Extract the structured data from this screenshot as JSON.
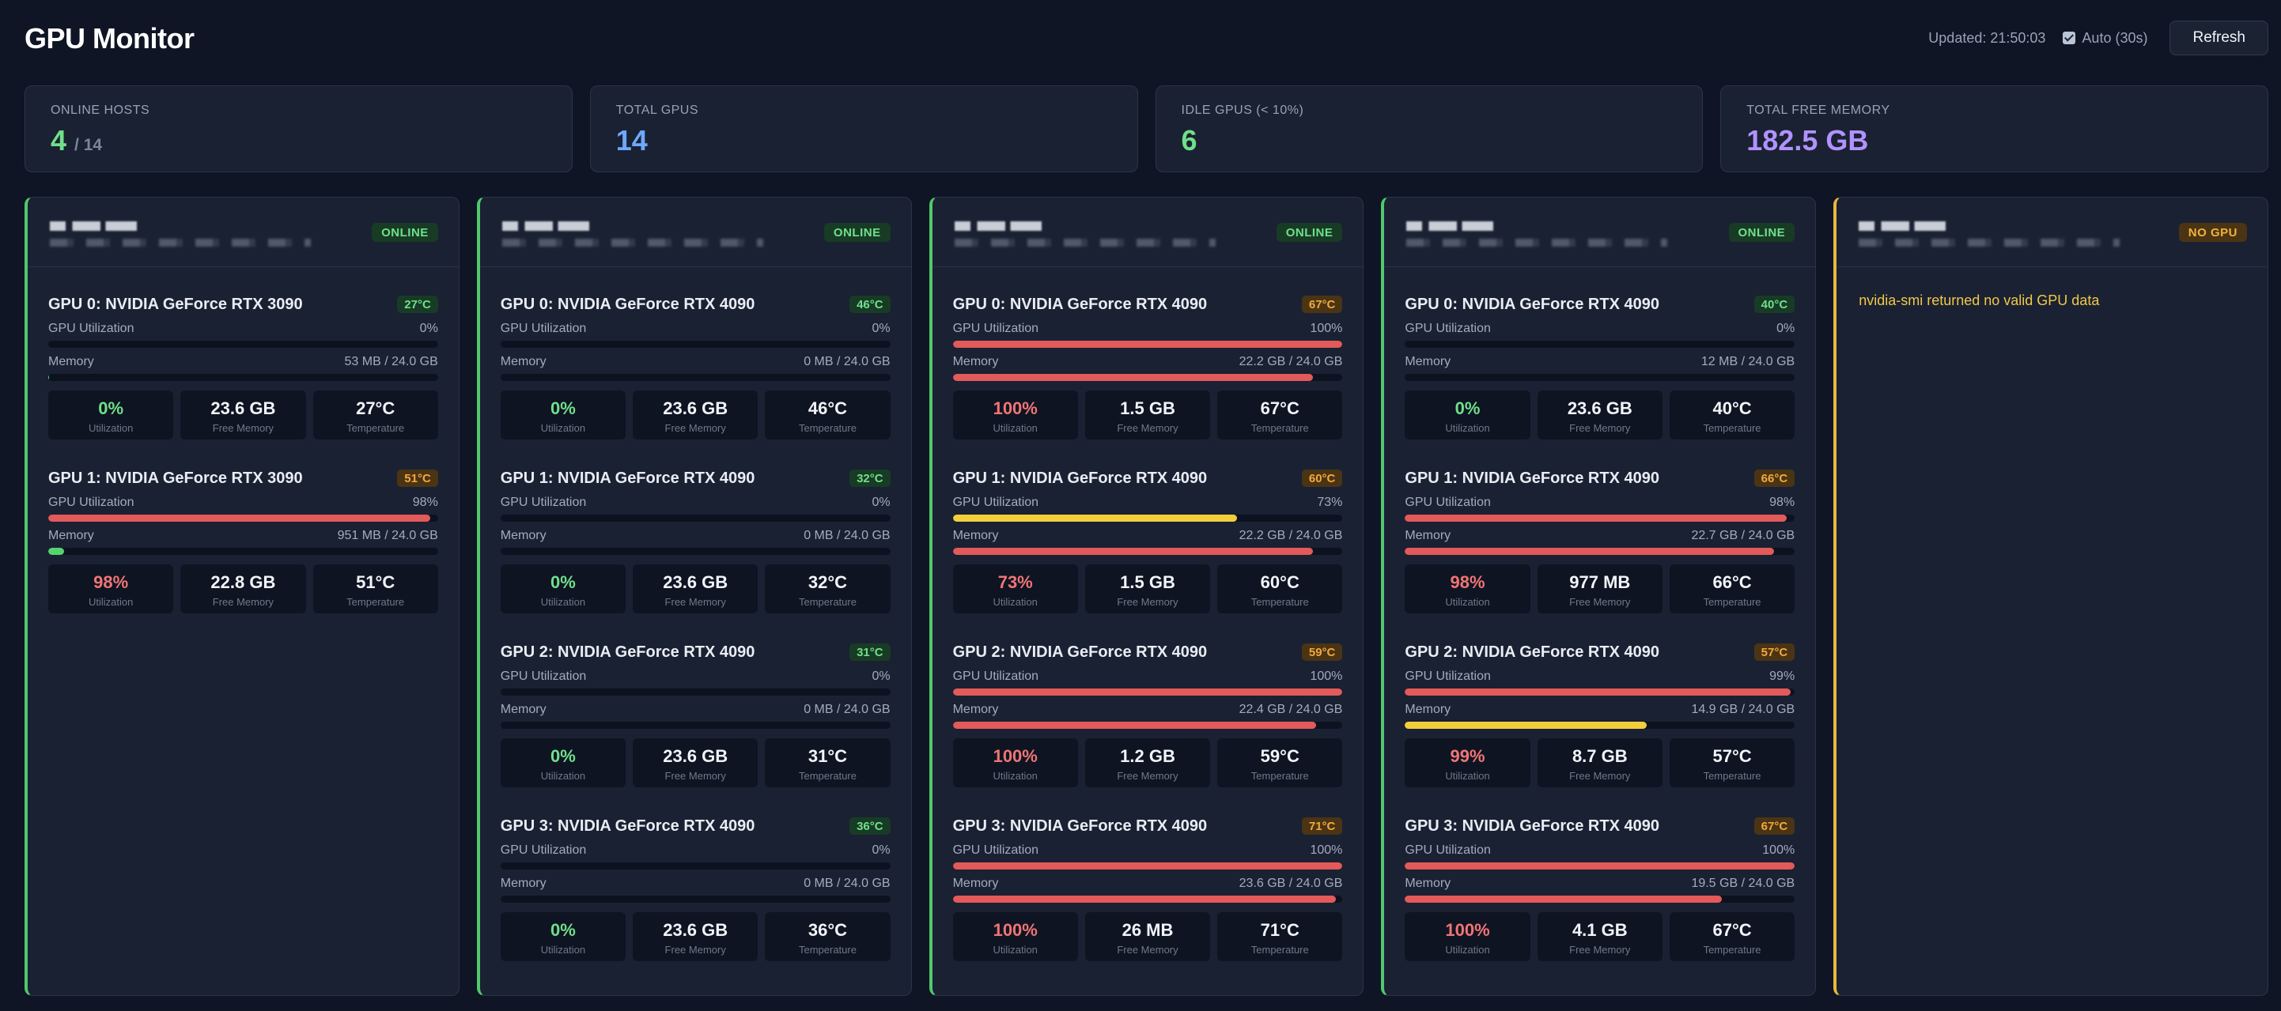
{
  "header": {
    "title": "GPU Monitor",
    "updated": "Updated: 21:50:03",
    "auto_label": "Auto (30s)",
    "refresh_label": "Refresh"
  },
  "stats": [
    {
      "label": "ONLINE HOSTS",
      "value": "4",
      "sub": "/ 14",
      "color": "#6fe08a"
    },
    {
      "label": "TOTAL GPUS",
      "value": "14",
      "sub": "",
      "color": "#6ea8ff"
    },
    {
      "label": "IDLE GPUS (< 10%)",
      "value": "6",
      "sub": "",
      "color": "#6fe08a"
    },
    {
      "label": "TOTAL FREE MEMORY",
      "value": "182.5 GB",
      "sub": "",
      "color": "#b192ff"
    }
  ],
  "labels": {
    "gpu_util": "GPU Utilization",
    "memory": "Memory",
    "utilization": "Utilization",
    "free_memory": "Free Memory",
    "temperature": "Temperature"
  },
  "hosts": [
    {
      "status": "ONLINE",
      "gpus": [
        {
          "name": "GPU 0: NVIDIA GeForce RTX 3090",
          "temp": "27°C",
          "temp_level": "cool",
          "util": "0%",
          "util_pct": 0,
          "memory": "53 MB / 24.0 GB",
          "mem_pct": 0.2,
          "free": "23.6 GB"
        },
        {
          "name": "GPU 1: NVIDIA GeForce RTX 3090",
          "temp": "51°C",
          "temp_level": "warm",
          "util": "98%",
          "util_pct": 98,
          "memory": "951 MB / 24.0 GB",
          "mem_pct": 4,
          "free": "22.8 GB"
        }
      ]
    },
    {
      "status": "ONLINE",
      "gpus": [
        {
          "name": "GPU 0: NVIDIA GeForce RTX 4090",
          "temp": "46°C",
          "temp_level": "cool",
          "util": "0%",
          "util_pct": 0,
          "memory": "0 MB / 24.0 GB",
          "mem_pct": 0,
          "free": "23.6 GB"
        },
        {
          "name": "GPU 1: NVIDIA GeForce RTX 4090",
          "temp": "32°C",
          "temp_level": "cool",
          "util": "0%",
          "util_pct": 0,
          "memory": "0 MB / 24.0 GB",
          "mem_pct": 0,
          "free": "23.6 GB"
        },
        {
          "name": "GPU 2: NVIDIA GeForce RTX 4090",
          "temp": "31°C",
          "temp_level": "cool",
          "util": "0%",
          "util_pct": 0,
          "memory": "0 MB / 24.0 GB",
          "mem_pct": 0,
          "free": "23.6 GB"
        },
        {
          "name": "GPU 3: NVIDIA GeForce RTX 4090",
          "temp": "36°C",
          "temp_level": "cool",
          "util": "0%",
          "util_pct": 0,
          "memory": "0 MB / 24.0 GB",
          "mem_pct": 0,
          "free": "23.6 GB"
        }
      ]
    },
    {
      "status": "ONLINE",
      "gpus": [
        {
          "name": "GPU 0: NVIDIA GeForce RTX 4090",
          "temp": "67°C",
          "temp_level": "warm",
          "util": "100%",
          "util_pct": 100,
          "memory": "22.2 GB / 24.0 GB",
          "mem_pct": 92.5,
          "free": "1.5 GB"
        },
        {
          "name": "GPU 1: NVIDIA GeForce RTX 4090",
          "temp": "60°C",
          "temp_level": "warm",
          "util": "73%",
          "util_pct": 73,
          "memory": "22.2 GB / 24.0 GB",
          "mem_pct": 92.5,
          "free": "1.5 GB"
        },
        {
          "name": "GPU 2: NVIDIA GeForce RTX 4090",
          "temp": "59°C",
          "temp_level": "warm",
          "util": "100%",
          "util_pct": 100,
          "memory": "22.4 GB / 24.0 GB",
          "mem_pct": 93.3,
          "free": "1.2 GB"
        },
        {
          "name": "GPU 3: NVIDIA GeForce RTX 4090",
          "temp": "71°C",
          "temp_level": "warm",
          "util": "100%",
          "util_pct": 100,
          "memory": "23.6 GB / 24.0 GB",
          "mem_pct": 98.3,
          "free": "26 MB"
        }
      ]
    },
    {
      "status": "ONLINE",
      "gpus": [
        {
          "name": "GPU 0: NVIDIA GeForce RTX 4090",
          "temp": "40°C",
          "temp_level": "cool",
          "util": "0%",
          "util_pct": 0,
          "memory": "12 MB / 24.0 GB",
          "mem_pct": 0,
          "free": "23.6 GB"
        },
        {
          "name": "GPU 1: NVIDIA GeForce RTX 4090",
          "temp": "66°C",
          "temp_level": "warm",
          "util": "98%",
          "util_pct": 98,
          "memory": "22.7 GB / 24.0 GB",
          "mem_pct": 94.6,
          "free": "977 MB"
        },
        {
          "name": "GPU 2: NVIDIA GeForce RTX 4090",
          "temp": "57°C",
          "temp_level": "warm",
          "util": "99%",
          "util_pct": 99,
          "memory": "14.9 GB / 24.0 GB",
          "mem_pct": 62.1,
          "free": "8.7 GB"
        },
        {
          "name": "GPU 3: NVIDIA GeForce RTX 4090",
          "temp": "67°C",
          "temp_level": "warm",
          "util": "100%",
          "util_pct": 100,
          "memory": "19.5 GB / 24.0 GB",
          "mem_pct": 81.3,
          "free": "4.1 GB"
        }
      ]
    },
    {
      "status": "NO GPU",
      "message": "nvidia-smi returned no valid GPU data",
      "gpus": []
    }
  ]
}
